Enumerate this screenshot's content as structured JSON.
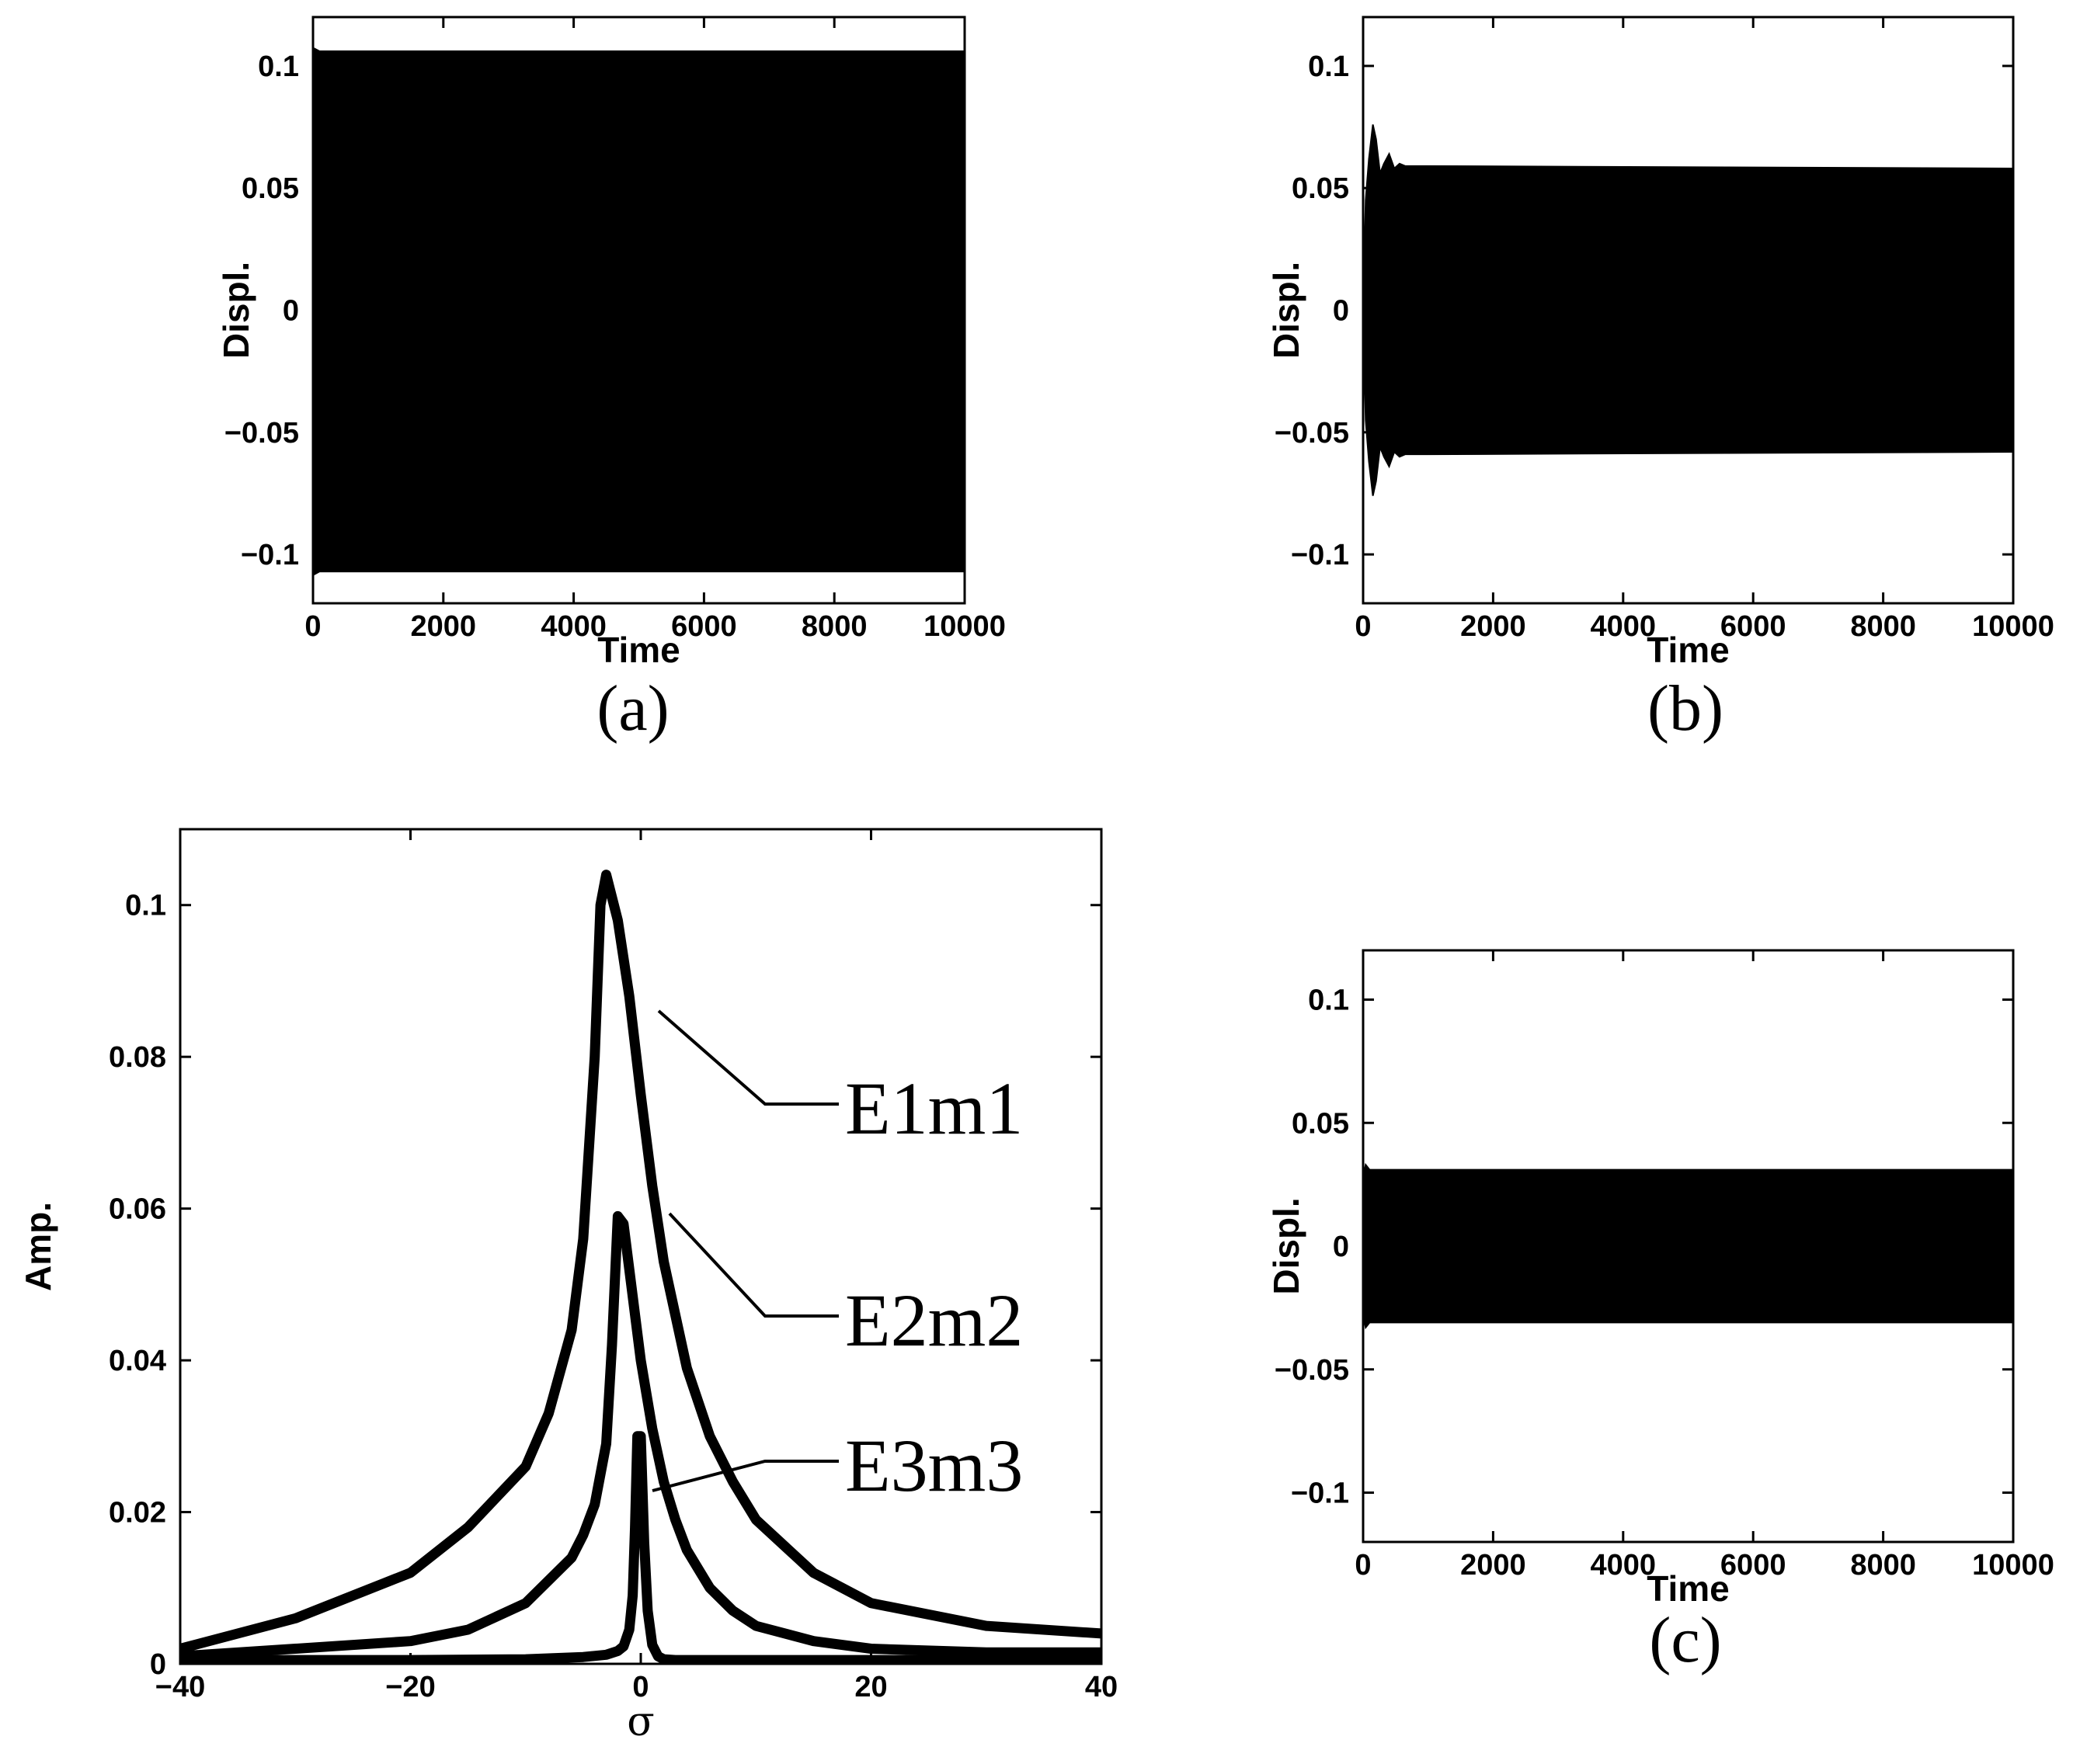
{
  "chart_data": [
    {
      "type": "line",
      "caption": "(a)",
      "xlabel": "Time",
      "ylabel": "Displ.",
      "xlim": [
        0,
        10000
      ],
      "ylim": [
        -0.12,
        0.12
      ],
      "xticks": [
        0,
        2000,
        4000,
        6000,
        8000,
        10000
      ],
      "xtick_labels": [
        "0",
        "2000",
        "4000",
        "6000",
        "8000",
        "10000"
      ],
      "yticks": [
        0.1,
        0.05,
        0,
        -0.05,
        -0.1
      ],
      "ytick_labels": [
        "0.1",
        "0.05",
        "0",
        "−0.05",
        "−0.1"
      ],
      "series": [
        {
          "kind": "oscillation_envelope",
          "t": [
            0,
            30,
            100,
            10000
          ],
          "upper": [
            0.09,
            0.107,
            0.106,
            0.106
          ],
          "lower": [
            -0.09,
            -0.108,
            -0.107,
            -0.107
          ]
        }
      ]
    },
    {
      "type": "line",
      "caption": "(b)",
      "xlabel": "Time",
      "ylabel": "Displ.",
      "xlim": [
        0,
        10000
      ],
      "ylim": [
        -0.12,
        0.12
      ],
      "xticks": [
        0,
        2000,
        4000,
        6000,
        8000,
        10000
      ],
      "xtick_labels": [
        "0",
        "2000",
        "4000",
        "6000",
        "8000",
        "10000"
      ],
      "yticks": [
        0.1,
        0.05,
        0,
        -0.05,
        -0.1
      ],
      "ytick_labels": [
        "0.1",
        "0.05",
        "0",
        "−0.05",
        "−0.1"
      ],
      "series": [
        {
          "kind": "oscillation_envelope",
          "t": [
            0,
            40,
            90,
            150,
            200,
            260,
            320,
            400,
            480,
            560,
            650,
            800,
            1000,
            10000
          ],
          "upper": [
            0.0,
            0.045,
            0.062,
            0.076,
            0.07,
            0.056,
            0.06,
            0.064,
            0.058,
            0.06,
            0.059,
            0.059,
            0.059,
            0.058
          ],
          "lower": [
            0.0,
            -0.045,
            -0.062,
            -0.076,
            -0.07,
            -0.056,
            -0.06,
            -0.064,
            -0.058,
            -0.06,
            -0.059,
            -0.059,
            -0.059,
            -0.058
          ]
        }
      ]
    },
    {
      "type": "line",
      "caption": "",
      "xlabel": "σ",
      "ylabel": "Amp.",
      "xlim": [
        -40,
        40
      ],
      "ylim": [
        0,
        0.11
      ],
      "xticks": [
        -40,
        -20,
        0,
        20,
        40
      ],
      "xtick_labels": [
        "−40",
        "−20",
        "0",
        "20",
        "40"
      ],
      "yticks": [
        0,
        0.02,
        0.04,
        0.06,
        0.08,
        0.1
      ],
      "ytick_labels": [
        "0",
        "0.02",
        "0.04",
        "0.06",
        "0.08",
        "0.1"
      ],
      "series": [
        {
          "name": "E1m1",
          "x": [
            -40,
            -30,
            -20,
            -15,
            -10,
            -8,
            -6,
            -5,
            -4,
            -3.5,
            -3,
            -2,
            -1,
            0,
            1,
            2,
            4,
            6,
            8,
            10,
            15,
            20,
            30,
            40
          ],
          "y": [
            0.002,
            0.006,
            0.012,
            0.018,
            0.026,
            0.033,
            0.044,
            0.056,
            0.08,
            0.1,
            0.104,
            0.098,
            0.088,
            0.075,
            0.063,
            0.053,
            0.039,
            0.03,
            0.024,
            0.019,
            0.012,
            0.008,
            0.005,
            0.004
          ]
        },
        {
          "name": "E2m2",
          "x": [
            -40,
            -30,
            -20,
            -15,
            -10,
            -8,
            -6,
            -5,
            -4,
            -3,
            -2.5,
            -2,
            -1.5,
            -1,
            0,
            1,
            2,
            3,
            4,
            6,
            8,
            10,
            15,
            20,
            30,
            40
          ],
          "y": [
            0.001,
            0.002,
            0.003,
            0.0045,
            0.008,
            0.011,
            0.014,
            0.017,
            0.021,
            0.029,
            0.042,
            0.059,
            0.058,
            0.052,
            0.04,
            0.031,
            0.024,
            0.019,
            0.015,
            0.01,
            0.007,
            0.005,
            0.003,
            0.002,
            0.0015,
            0.0015
          ]
        },
        {
          "name": "E3m3",
          "x": [
            -40,
            -20,
            -10,
            -5,
            -3,
            -2,
            -1.5,
            -1,
            -0.7,
            -0.5,
            -0.3,
            0,
            0.3,
            0.6,
            1,
            1.5,
            2,
            3,
            5,
            10,
            20,
            40
          ],
          "y": [
            0.0005,
            0.0005,
            0.0006,
            0.0009,
            0.0012,
            0.0017,
            0.0023,
            0.0045,
            0.009,
            0.018,
            0.03,
            0.03,
            0.016,
            0.007,
            0.0025,
            0.001,
            0.0006,
            0.0005,
            0.0005,
            0.0005,
            0.0005,
            0.0005
          ]
        }
      ]
    },
    {
      "type": "line",
      "caption": "(c)",
      "xlabel": "Time",
      "ylabel": "Displ.",
      "xlim": [
        0,
        10000
      ],
      "ylim": [
        -0.12,
        0.12
      ],
      "xticks": [
        0,
        2000,
        4000,
        6000,
        8000,
        10000
      ],
      "xtick_labels": [
        "0",
        "2000",
        "4000",
        "6000",
        "8000",
        "10000"
      ],
      "yticks": [
        0.1,
        0.05,
        0,
        -0.05,
        -0.1
      ],
      "ytick_labels": [
        "0.1",
        "0.05",
        "0",
        "−0.05",
        "−0.1"
      ],
      "series": [
        {
          "kind": "oscillation_envelope",
          "t": [
            0,
            40,
            100,
            10000
          ],
          "upper": [
            0.028,
            0.033,
            0.031,
            0.031
          ],
          "lower": [
            -0.028,
            -0.033,
            -0.031,
            -0.031
          ]
        }
      ]
    }
  ]
}
